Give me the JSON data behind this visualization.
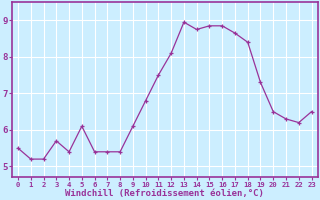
{
  "x": [
    0,
    1,
    2,
    3,
    4,
    5,
    6,
    7,
    8,
    9,
    10,
    11,
    12,
    13,
    14,
    15,
    16,
    17,
    18,
    19,
    20,
    21,
    22,
    23
  ],
  "y": [
    5.5,
    5.2,
    5.2,
    5.7,
    5.4,
    6.1,
    5.4,
    5.4,
    5.4,
    6.1,
    6.8,
    7.5,
    8.1,
    8.95,
    8.75,
    8.85,
    8.85,
    8.65,
    8.4,
    7.3,
    6.5,
    6.3,
    6.2,
    6.5
  ],
  "line_color": "#993399",
  "marker": "+",
  "marker_size": 3,
  "bg_color": "#cceeff",
  "grid_color": "#ffffff",
  "xlabel": "Windchill (Refroidissement éolien,°C)",
  "xlabel_color": "#993399",
  "tick_color": "#993399",
  "spine_color": "#993399",
  "ylabel_ticks": [
    5,
    6,
    7,
    8,
    9
  ],
  "ylim": [
    4.7,
    9.5
  ],
  "xlim": [
    -0.5,
    23.5
  ]
}
